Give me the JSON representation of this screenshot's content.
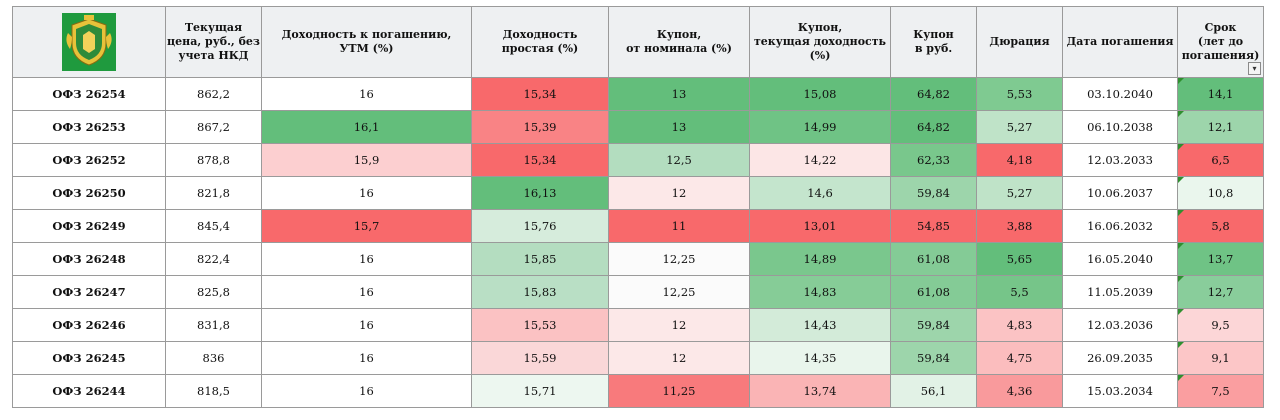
{
  "header": {
    "logo_icon": "coat-of-arms-icon",
    "columns": [
      "Текущая цена, руб., без учета НКД",
      "Доходность к погашению, УТМ (%)",
      "Доходность простая (%)",
      "Купон, от номинала (%)",
      "Купон, текущая доходность (%)",
      "Купон в руб.",
      "Дюрация",
      "Дата погашения",
      "Срок (лет до погашения)"
    ],
    "col_lines": [
      [
        "Текущая",
        "цена, руб., без",
        "учета НКД"
      ],
      [
        "Доходность к погашению,",
        "УТМ (%)"
      ],
      [
        "Доходность",
        "простая (%)"
      ],
      [
        "Купон,",
        "от номинала (%)"
      ],
      [
        "Купон,",
        "текущая доходность",
        "(%)"
      ],
      [
        "Купон",
        "в руб."
      ],
      [
        "Дюрация"
      ],
      [
        "Дата погашения"
      ],
      [
        "Срок",
        "(лет до",
        "погашения)"
      ]
    ],
    "dropdown_glyph": "▾"
  },
  "rows": [
    {
      "name": "ОФЗ 26254",
      "price": "862,2",
      "ytm": "16",
      "simple": "15,34",
      "coupon_pct": "13",
      "coupon_cur": "15,08",
      "coupon_rub": "64,82",
      "duration": "5,53",
      "date": "03.10.2040",
      "term": "14,1"
    },
    {
      "name": "ОФЗ 26253",
      "price": "867,2",
      "ytm": "16,1",
      "simple": "15,39",
      "coupon_pct": "13",
      "coupon_cur": "14,99",
      "coupon_rub": "64,82",
      "duration": "5,27",
      "date": "06.10.2038",
      "term": "12,1"
    },
    {
      "name": "ОФЗ 26252",
      "price": "878,8",
      "ytm": "15,9",
      "simple": "15,34",
      "coupon_pct": "12,5",
      "coupon_cur": "14,22",
      "coupon_rub": "62,33",
      "duration": "4,18",
      "date": "12.03.2033",
      "term": "6,5"
    },
    {
      "name": "ОФЗ 26250",
      "price": "821,8",
      "ytm": "16",
      "simple": "16,13",
      "coupon_pct": "12",
      "coupon_cur": "14,6",
      "coupon_rub": "59,84",
      "duration": "5,27",
      "date": "10.06.2037",
      "term": "10,8"
    },
    {
      "name": "ОФЗ 26249",
      "price": "845,4",
      "ytm": "15,7",
      "simple": "15,76",
      "coupon_pct": "11",
      "coupon_cur": "13,01",
      "coupon_rub": "54,85",
      "duration": "3,88",
      "date": "16.06.2032",
      "term": "5,8"
    },
    {
      "name": "ОФЗ 26248",
      "price": "822,4",
      "ytm": "16",
      "simple": "15,85",
      "coupon_pct": "12,25",
      "coupon_cur": "14,89",
      "coupon_rub": "61,08",
      "duration": "5,65",
      "date": "16.05.2040",
      "term": "13,7"
    },
    {
      "name": "ОФЗ 26247",
      "price": "825,8",
      "ytm": "16",
      "simple": "15,83",
      "coupon_pct": "12,25",
      "coupon_cur": "14,83",
      "coupon_rub": "61,08",
      "duration": "5,5",
      "date": "11.05.2039",
      "term": "12,7"
    },
    {
      "name": "ОФЗ 26246",
      "price": "831,8",
      "ytm": "16",
      "simple": "15,53",
      "coupon_pct": "12",
      "coupon_cur": "14,43",
      "coupon_rub": "59,84",
      "duration": "4,83",
      "date": "12.03.2036",
      "term": "9,5"
    },
    {
      "name": "ОФЗ 26245",
      "price": "836",
      "ytm": "16",
      "simple": "15,59",
      "coupon_pct": "12",
      "coupon_cur": "14,35",
      "coupon_rub": "59,84",
      "duration": "4,75",
      "date": "26.09.2035",
      "term": "9,1"
    },
    {
      "name": "ОФЗ 26244",
      "price": "818,5",
      "ytm": "16",
      "simple": "15,71",
      "coupon_pct": "11,25",
      "coupon_cur": "13,74",
      "coupon_rub": "56,1",
      "duration": "4,36",
      "date": "15.03.2034",
      "term": "7,5"
    }
  ],
  "colors": {
    "rows": [
      {
        "price": "#ffffff",
        "ytm": "#ffffff",
        "simple": "#f8696b",
        "coupon_pct": "#63be7b",
        "coupon_cur": "#63be7b",
        "coupon_rub": "#63be7b",
        "duration": "#7fca91",
        "date": "#ffffff",
        "term": "#63be7b"
      },
      {
        "price": "#ffffff",
        "ytm": "#63be7b",
        "simple": "#f98385",
        "coupon_pct": "#63be7b",
        "coupon_cur": "#6fc385",
        "coupon_rub": "#63be7b",
        "duration": "#bfe3c8",
        "date": "#ffffff",
        "term": "#9dd5ab"
      },
      {
        "price": "#ffffff",
        "ytm": "#fccfd0",
        "simple": "#f8696b",
        "coupon_pct": "#b3ddbf",
        "coupon_cur": "#fce6e6",
        "coupon_rub": "#79c78c",
        "duration": "#f8696b",
        "date": "#ffffff",
        "term": "#f8696b"
      },
      {
        "price": "#ffffff",
        "ytm": "#ffffff",
        "simple": "#63be7b",
        "coupon_pct": "#fce8e8",
        "coupon_cur": "#c4e5cd",
        "coupon_rub": "#9dd5ab",
        "duration": "#bfe3c8",
        "date": "#ffffff",
        "term": "#eaf6ed"
      },
      {
        "price": "#ffffff",
        "ytm": "#f8696b",
        "simple": "#d6ecdc",
        "coupon_pct": "#f8696b",
        "coupon_cur": "#f8696b",
        "coupon_rub": "#f8696b",
        "duration": "#f8696b",
        "date": "#ffffff",
        "term": "#f8696b"
      },
      {
        "price": "#ffffff",
        "ytm": "#ffffff",
        "simple": "#b4ddc0",
        "coupon_pct": "#fbfbfb",
        "coupon_cur": "#7ac78d",
        "coupon_rub": "#84cb96",
        "duration": "#63be7b",
        "date": "#ffffff",
        "term": "#6fc385"
      },
      {
        "price": "#ffffff",
        "ytm": "#ffffff",
        "simple": "#b9dfc5",
        "coupon_pct": "#fbfbfb",
        "coupon_cur": "#86cc97",
        "coupon_rub": "#84cb96",
        "duration": "#76c589",
        "date": "#ffffff",
        "term": "#89cd9b"
      },
      {
        "price": "#ffffff",
        "ytm": "#ffffff",
        "simple": "#fbc2c3",
        "coupon_pct": "#fce8e8",
        "coupon_cur": "#d3ebd9",
        "coupon_rub": "#9dd5ab",
        "duration": "#fbc3c4",
        "date": "#ffffff",
        "term": "#fcd6d7"
      },
      {
        "price": "#ffffff",
        "ytm": "#ffffff",
        "simple": "#fad7d8",
        "coupon_pct": "#fce8e8",
        "coupon_cur": "#e9f5ec",
        "coupon_rub": "#9dd5ab",
        "duration": "#fbbdbe",
        "date": "#ffffff",
        "term": "#fcc6c7"
      },
      {
        "price": "#ffffff",
        "ytm": "#ffffff",
        "simple": "#edf7f0",
        "coupon_pct": "#f87a7c",
        "coupon_cur": "#fab4b5",
        "coupon_rub": "#e2f2e6",
        "duration": "#f99a9c",
        "date": "#ffffff",
        "term": "#fa9ea0"
      }
    ]
  }
}
